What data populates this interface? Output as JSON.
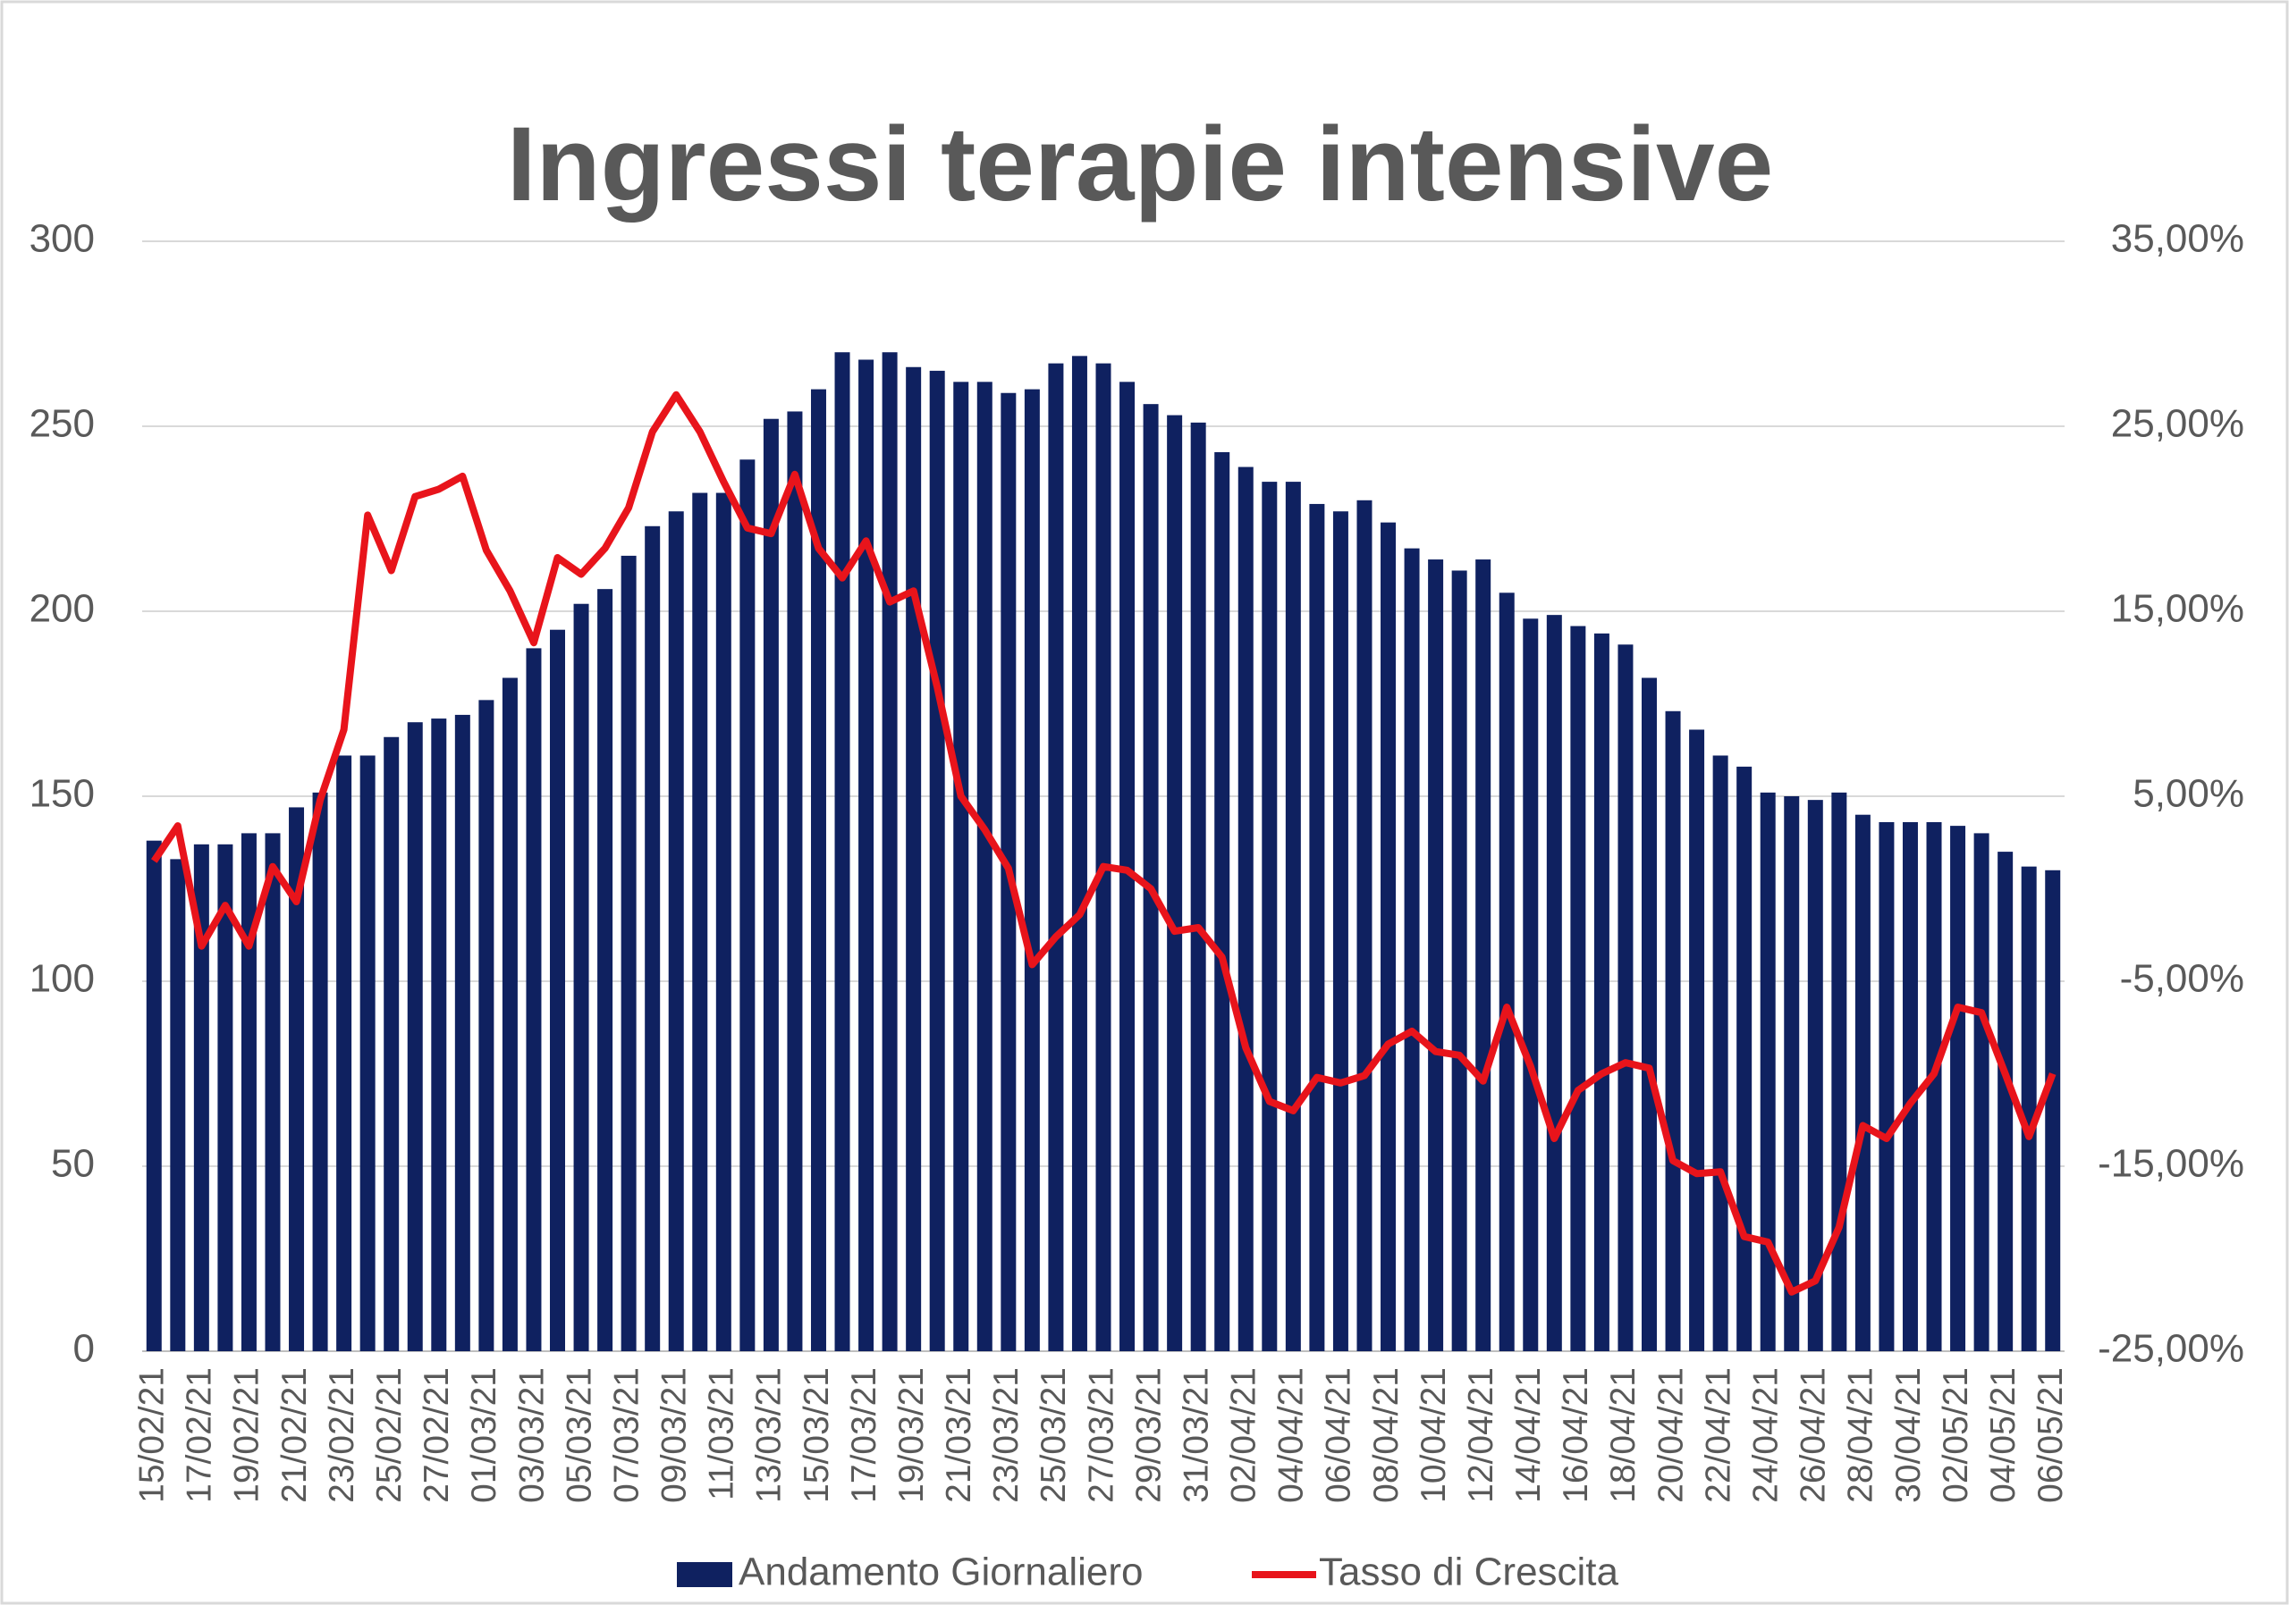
{
  "chart_data": {
    "type": "bar",
    "title": "Ingressi terapie intensive",
    "categories": [
      "15/02/21",
      null,
      "17/02/21",
      null,
      "19/02/21",
      null,
      "21/02/21",
      null,
      "23/02/21",
      null,
      "25/02/21",
      null,
      "27/02/21",
      null,
      "01/03/21",
      null,
      "03/03/21",
      null,
      "05/03/21",
      null,
      "07/03/21",
      null,
      "09/03/21",
      null,
      "11/03/21",
      null,
      "13/03/21",
      null,
      "15/03/21",
      null,
      "17/03/21",
      null,
      "19/03/21",
      null,
      "21/03/21",
      null,
      "23/03/21",
      null,
      "25/03/21",
      null,
      "27/03/21",
      null,
      "29/03/21",
      null,
      "31/03/21",
      null,
      "02/04/21",
      null,
      "04/04/21",
      null,
      "06/04/21",
      null,
      "08/04/21",
      null,
      "10/04/21",
      null,
      "12/04/21",
      null,
      "14/04/21",
      null,
      "16/04/21",
      null,
      "18/04/21",
      null,
      "20/04/21",
      null,
      "22/04/21",
      null,
      "24/04/21",
      null,
      "26/04/21",
      null,
      "28/04/21",
      null,
      "30/04/21",
      null,
      "02/05/21",
      null,
      "04/05/21",
      null,
      "06/05/21"
    ],
    "series": [
      {
        "name": "Andamento Giornaliero",
        "color": "#0f2160",
        "values": [
          138,
          133,
          137,
          137,
          140,
          140,
          147,
          151,
          161,
          161,
          166,
          170,
          171,
          172,
          176,
          182,
          190,
          195,
          202,
          206,
          215,
          223,
          227,
          232,
          232,
          241,
          252,
          254,
          260,
          270,
          268,
          270,
          266,
          265,
          262,
          262,
          259,
          260,
          267,
          269,
          267,
          262,
          256,
          253,
          251,
          243,
          239,
          235,
          235,
          229,
          227,
          230,
          224,
          217,
          214,
          211,
          214,
          205,
          198,
          199,
          196,
          194,
          191,
          182,
          173,
          168,
          161,
          158,
          151,
          150,
          149,
          151,
          145,
          143,
          143,
          143,
          142,
          140,
          135,
          131,
          130
        ]
      },
      {
        "name": "Tasso di Crescita",
        "color": "#e8141b",
        "axis": "y2",
        "values": [
          1.5,
          3.4,
          -3.1,
          -0.9,
          -3.1,
          1.2,
          -0.7,
          4.8,
          8.6,
          20.2,
          17.2,
          21.2,
          21.6,
          22.3,
          18.3,
          16.1,
          13.3,
          17.9,
          17.0,
          18.4,
          20.6,
          24.7,
          26.7,
          24.7,
          22.0,
          19.5,
          19.2,
          22.4,
          18.4,
          16.8,
          18.8,
          15.5,
          16.1,
          10.9,
          5.0,
          3.2,
          1.1,
          -4.1,
          -2.6,
          -1.4,
          1.2,
          1.0,
          0.0,
          -2.3,
          -2.1,
          -3.7,
          -8.6,
          -11.5,
          -12.0,
          -10.2,
          -10.5,
          -10.1,
          -8.4,
          -7.7,
          -8.8,
          -9.0,
          -10.4,
          -6.4,
          -9.6,
          -13.5,
          -10.9,
          -10.0,
          -9.4,
          -9.7,
          -14.7,
          -15.4,
          -15.3,
          -18.8,
          -19.1,
          -21.8,
          -21.2,
          -18.3,
          -12.8,
          -13.5,
          -11.6,
          -10.0,
          -6.4,
          -6.7,
          -10.0,
          -13.4,
          -10.0
        ]
      }
    ],
    "ylim": [
      0,
      300
    ],
    "yticks": [
      0,
      50,
      100,
      150,
      200,
      250,
      300
    ],
    "y2lim": [
      -25,
      35
    ],
    "y2ticks": [
      {
        "value": -25,
        "label": "-25,00%"
      },
      {
        "value": -15,
        "label": "-15,00%"
      },
      {
        "value": -5,
        "label": "-5,00%"
      },
      {
        "value": 5,
        "label": "5,00%"
      },
      {
        "value": 15,
        "label": "15,00%"
      },
      {
        "value": 25,
        "label": "25,00%"
      },
      {
        "value": 35,
        "label": "35,00%"
      }
    ],
    "grid": true,
    "legend": "bottom"
  }
}
